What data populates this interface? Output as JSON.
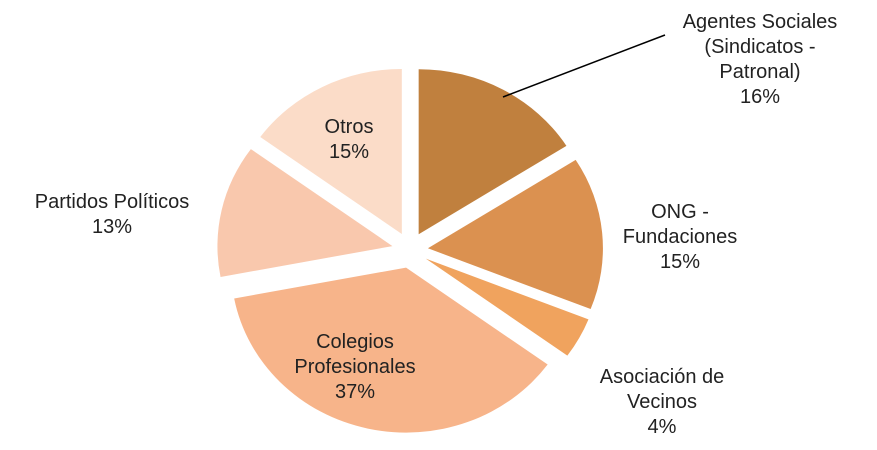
{
  "chart_data": {
    "type": "pie",
    "categories": [
      "Agentes Sociales (Sindicatos - Patronal)",
      "ONG - Fundaciones",
      "Asociación de Vecinos",
      "Colegios Profesionales",
      "Partidos Políticos",
      "Otros"
    ],
    "values": [
      16,
      15,
      4,
      37,
      13,
      15
    ],
    "value_labels": [
      "16%",
      "15%",
      "4%",
      "37%",
      "13%",
      "15%"
    ],
    "colors": [
      "#c0803e",
      "#db9150",
      "#f0a35e",
      "#f7b48a",
      "#f9c8ad",
      "#fbdcc8"
    ]
  }
}
